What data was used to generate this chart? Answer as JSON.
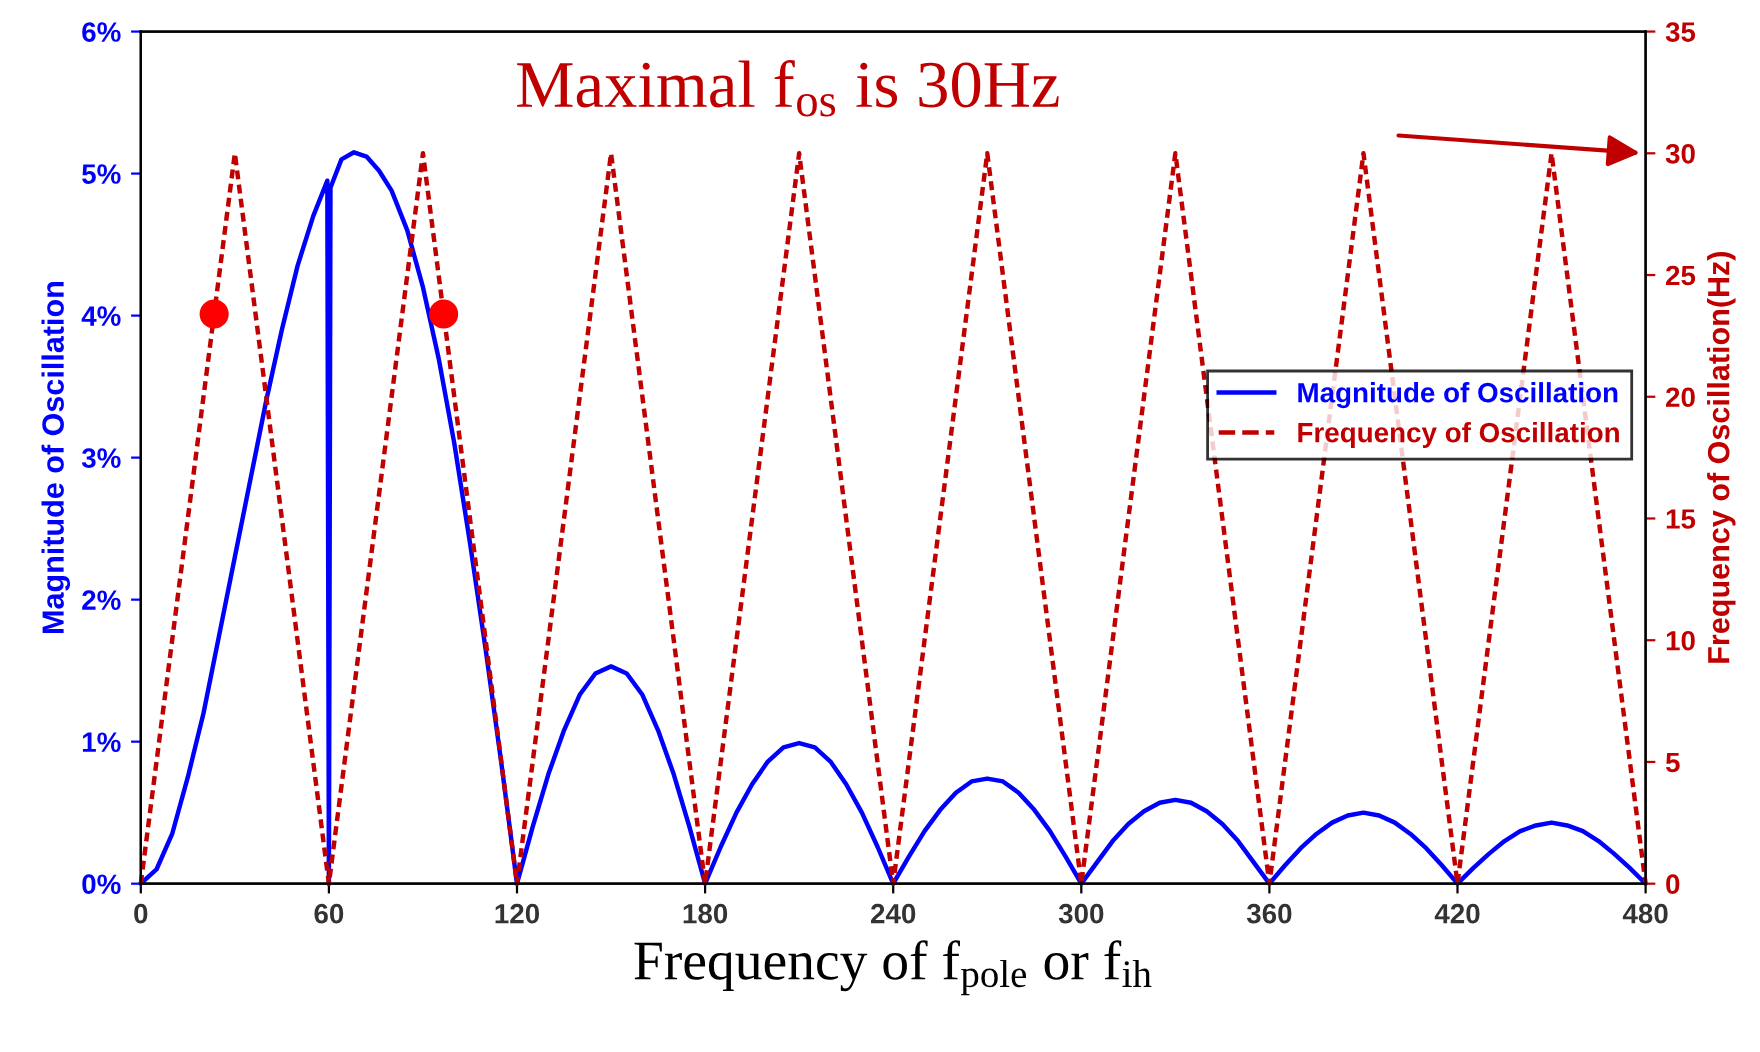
{
  "chart_data": {
    "type": "line",
    "xlabel": "Frequency of f$_{pole}$ or f$_{ih}$",
    "ylabel": "Magnitude of Oscillation",
    "y2label": "Frequency of Oscillation(Hz)",
    "annotations": [
      "Maximal f$_{os}$ is 30Hz"
    ],
    "xlim": [
      0,
      480
    ],
    "xticks": [
      0,
      60,
      120,
      180,
      240,
      300,
      360,
      420,
      480
    ],
    "ylim": [
      0,
      6
    ],
    "yticks": [
      {
        "value": 0,
        "label": "0%"
      },
      {
        "value": 1,
        "label": "1%"
      },
      {
        "value": 2,
        "label": "2%"
      },
      {
        "value": 3,
        "label": "3%"
      },
      {
        "value": 4,
        "label": "4%"
      },
      {
        "value": 5,
        "label": "5%"
      },
      {
        "value": 6,
        "label": "6%"
      }
    ],
    "y2lim": [
      0,
      35
    ],
    "y2ticks": [
      0,
      5,
      10,
      15,
      20,
      25,
      30,
      35
    ],
    "grid": false,
    "legend": "right",
    "series": [
      {
        "name": "Magnitude of Oscillation",
        "color": "#0000ff",
        "line_style": "solid",
        "x": [
          0,
          5,
          10,
          15,
          20,
          25,
          30,
          35,
          40,
          45,
          50,
          55,
          59.5,
          60,
          60.5,
          64,
          68,
          72,
          76,
          80,
          85,
          90,
          95,
          100,
          105,
          110,
          115,
          120,
          125,
          130,
          135,
          140,
          145,
          150,
          155,
          160,
          165,
          170,
          175,
          180,
          185,
          190,
          195,
          200,
          205,
          210,
          215,
          220,
          225,
          230,
          235,
          240,
          245,
          250,
          255,
          260,
          265,
          270,
          275,
          280,
          285,
          290,
          295,
          300,
          305,
          310,
          315,
          320,
          325,
          330,
          335,
          340,
          345,
          350,
          355,
          360,
          365,
          370,
          375,
          380,
          385,
          390,
          395,
          400,
          405,
          410,
          415,
          420,
          425,
          430,
          435,
          440,
          445,
          450,
          455,
          460,
          465,
          470,
          475,
          480
        ],
        "values": [
          0,
          0.1,
          0.35,
          0.75,
          1.2,
          1.75,
          2.3,
          2.85,
          3.4,
          3.9,
          4.35,
          4.7,
          4.95,
          0,
          4.9,
          5.1,
          5.15,
          5.12,
          5.02,
          4.88,
          4.6,
          4.2,
          3.7,
          3.1,
          2.4,
          1.65,
          0.85,
          0,
          0.4,
          0.77,
          1.08,
          1.33,
          1.48,
          1.53,
          1.48,
          1.33,
          1.08,
          0.77,
          0.4,
          0,
          0.26,
          0.5,
          0.7,
          0.86,
          0.96,
          0.99,
          0.96,
          0.86,
          0.7,
          0.5,
          0.26,
          0,
          0.19,
          0.37,
          0.52,
          0.64,
          0.72,
          0.74,
          0.72,
          0.64,
          0.52,
          0.37,
          0.19,
          0,
          0.15,
          0.3,
          0.42,
          0.51,
          0.57,
          0.59,
          0.57,
          0.51,
          0.42,
          0.3,
          0.15,
          0,
          0.13,
          0.25,
          0.35,
          0.43,
          0.48,
          0.5,
          0.48,
          0.43,
          0.35,
          0.25,
          0.13,
          0,
          0.11,
          0.21,
          0.3,
          0.37,
          0.41,
          0.43,
          0.41,
          0.37,
          0.3,
          0.21,
          0.11,
          0
        ]
      },
      {
        "name": "Frequency of Oscillation",
        "color": "#c00000",
        "line_style": "dotted",
        "axis": "y2",
        "x": [
          0,
          30,
          60,
          90,
          120,
          150,
          180,
          210,
          240,
          270,
          300,
          330,
          360,
          390,
          420,
          450,
          480
        ],
        "values": [
          0,
          30,
          0,
          30,
          0,
          30,
          0,
          30,
          0,
          30,
          0,
          30,
          0,
          30,
          0,
          30,
          0
        ]
      },
      {
        "color": "#ff0000",
        "type": "scatter",
        "marker": "circle",
        "axis": "y2",
        "x": [
          23.4,
          96.6
        ],
        "values": [
          23.4,
          23.4
        ]
      }
    ]
  }
}
